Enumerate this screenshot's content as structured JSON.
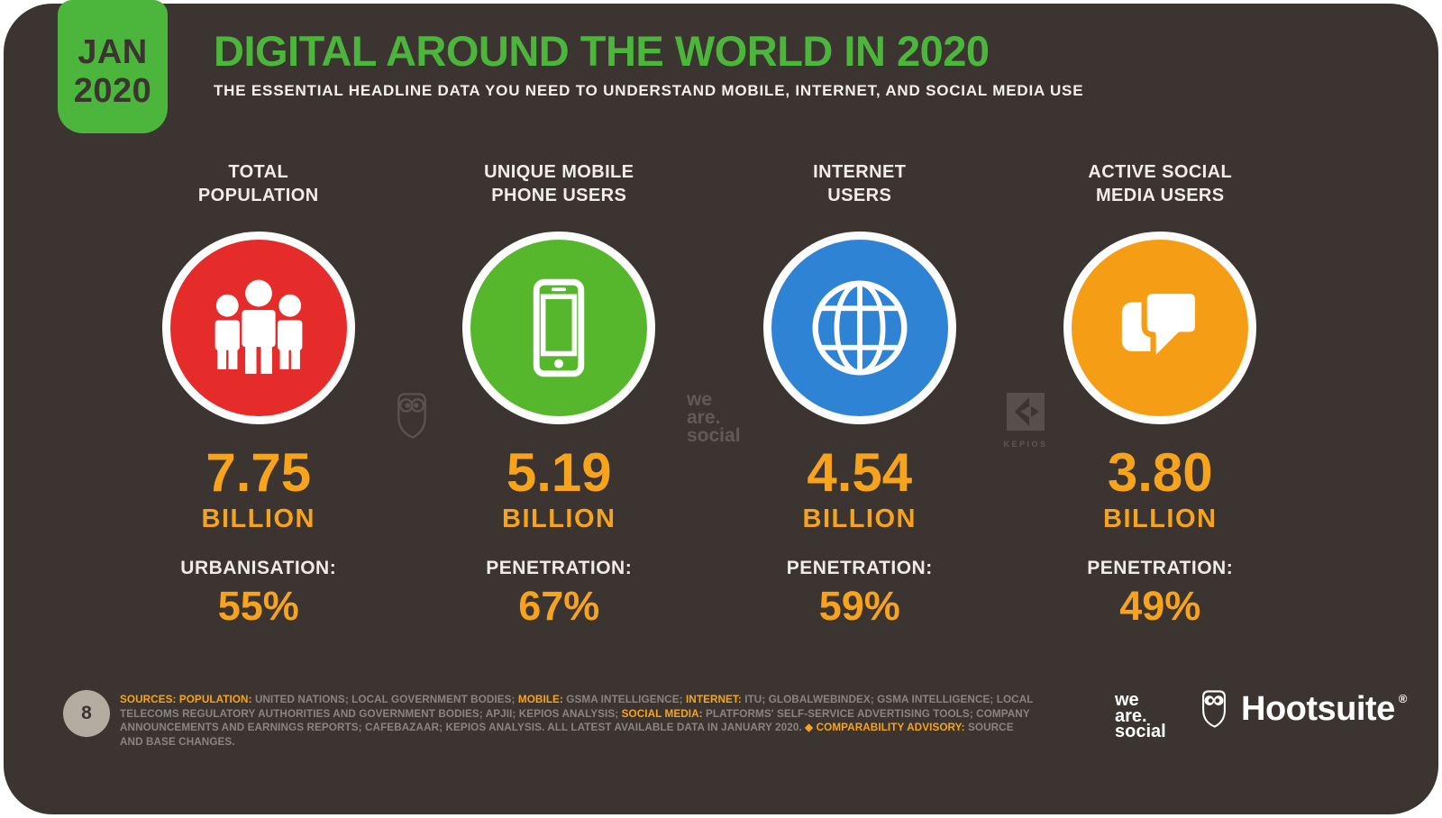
{
  "badge": {
    "month": "JAN",
    "year": "2020"
  },
  "header": {
    "title": "DIGITAL AROUND THE WORLD IN 2020",
    "subtitle": "THE ESSENTIAL HEADLINE DATA YOU NEED TO UNDERSTAND MOBILE, INTERNET, AND SOCIAL MEDIA USE"
  },
  "columns": [
    {
      "title_line1": "TOTAL",
      "title_line2": "POPULATION",
      "icon": "people-icon",
      "circle_color": "#E62B2B",
      "value": "7.75",
      "unit": "BILLION",
      "metric_label": "URBANISATION:",
      "metric_value": "55%"
    },
    {
      "title_line1": "UNIQUE MOBILE",
      "title_line2": "PHONE USERS",
      "icon": "smartphone-icon",
      "circle_color": "#56B72C",
      "value": "5.19",
      "unit": "BILLION",
      "metric_label": "PENETRATION:",
      "metric_value": "67%"
    },
    {
      "title_line1": "INTERNET",
      "title_line2": "USERS",
      "icon": "globe-icon",
      "circle_color": "#2E83D4",
      "value": "4.54",
      "unit": "BILLION",
      "metric_label": "PENETRATION:",
      "metric_value": "59%"
    },
    {
      "title_line1": "ACTIVE SOCIAL",
      "title_line2": "MEDIA USERS",
      "icon": "chat-bubbles-icon",
      "circle_color": "#F59D14",
      "value": "3.80",
      "unit": "BILLION",
      "metric_label": "PENETRATION:",
      "metric_value": "49%"
    }
  ],
  "watermarks": {
    "wearesocial": {
      "line1": "we",
      "line2": "are.",
      "line3": "social"
    },
    "kepios_label": "KEPIOS"
  },
  "footer": {
    "page_number": "8",
    "sources_segments": [
      {
        "t": "SOURCES: ",
        "c": "o"
      },
      {
        "t": "POPULATION:",
        "c": "o"
      },
      {
        "t": " UNITED NATIONS; LOCAL GOVERNMENT BODIES; ",
        "c": "g"
      },
      {
        "t": "MOBILE:",
        "c": "o"
      },
      {
        "t": " GSMA INTELLIGENCE; ",
        "c": "g"
      },
      {
        "t": "INTERNET:",
        "c": "o"
      },
      {
        "t": " ITU; GLOBALWEBINDEX; GSMA INTELLIGENCE; LOCAL TELECOMS REGULATORY AUTHORITIES AND GOVERNMENT BODIES; APJII; KEPIOS ANALYSIS; ",
        "c": "g"
      },
      {
        "t": "SOCIAL MEDIA:",
        "c": "o"
      },
      {
        "t": " PLATFORMS' SELF-SERVICE ADVERTISING TOOLS; COMPANY ANNOUNCEMENTS AND EARNINGS REPORTS; CAFEBAZAAR; KEPIOS ANALYSIS. ALL LATEST AVAILABLE DATA IN JANUARY 2020. ",
        "c": "g"
      },
      {
        "t": "◆ COMPARABILITY ADVISORY:",
        "c": "o"
      },
      {
        "t": " SOURCE AND BASE CHANGES.",
        "c": "g"
      }
    ],
    "wearesocial_logo": {
      "line1": "we",
      "line2": "are.",
      "line3": "social"
    },
    "hootsuite": {
      "name": "Hootsuite",
      "registered": "®"
    }
  },
  "colors": {
    "background": "#3B3431",
    "accent_green": "#4CB63C",
    "accent_orange": "#F7A41C",
    "circle_red": "#E62B2B",
    "circle_green": "#56B72C",
    "circle_blue": "#2E83D4",
    "circle_orange": "#F59D14"
  },
  "chart_data": {
    "type": "table",
    "title": "DIGITAL AROUND THE WORLD IN 2020",
    "date": "JAN 2020",
    "categories": [
      "TOTAL POPULATION",
      "UNIQUE MOBILE PHONE USERS",
      "INTERNET USERS",
      "ACTIVE SOCIAL MEDIA USERS"
    ],
    "values_billions": [
      7.75,
      5.19,
      4.54,
      3.8
    ],
    "secondary_metrics": [
      {
        "label": "URBANISATION",
        "value_pct": 55
      },
      {
        "label": "PENETRATION",
        "value_pct": 67
      },
      {
        "label": "PENETRATION",
        "value_pct": 59
      },
      {
        "label": "PENETRATION",
        "value_pct": 49
      }
    ]
  }
}
